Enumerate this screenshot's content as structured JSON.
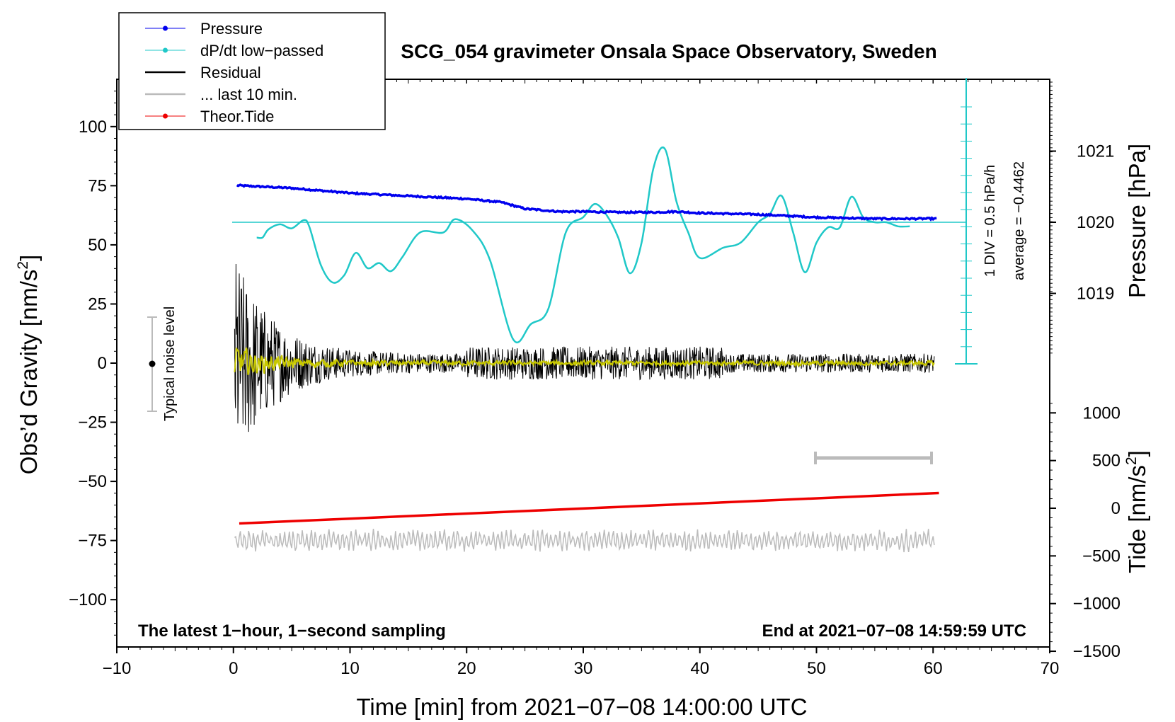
{
  "chart_data": {
    "type": "line",
    "title": "SCG_054 gravimeter Onsala Space Observatory, Sweden",
    "xlabel": "Time [min] from 2021−07−08 14:00:00 UTC",
    "ylabel_left_prefix": "Obs’d Gravity [nm/s",
    "ylabel_left_sup": "2",
    "ylabel_left_suffix": "]",
    "ylabel_right_pressure": "Pressure [hPa]",
    "ylabel_right_tide_prefix": "Tide [nm/s",
    "ylabel_right_tide_sup": "2",
    "ylabel_right_tide_suffix": "]",
    "xlim": [
      -10,
      70
    ],
    "ylim": [
      -120,
      120
    ],
    "x_ticks": [
      "−10",
      "0",
      "10",
      "20",
      "30",
      "40",
      "50",
      "60",
      "70"
    ],
    "x_tick_values": [
      -10,
      0,
      10,
      20,
      30,
      40,
      50,
      60,
      70
    ],
    "y_ticks": [
      "100",
      "75",
      "50",
      "25",
      "0",
      "−25",
      "−50",
      "−75",
      "−100"
    ],
    "y_tick_values": [
      100,
      75,
      50,
      25,
      0,
      -25,
      -50,
      -75,
      -100
    ],
    "pressure_ticks": [
      "1021",
      "1020",
      "1019"
    ],
    "pressure_tick_values": [
      1021,
      1020,
      1019
    ],
    "tide_ticks": [
      "1000",
      "500",
      "0",
      "−500",
      "−1000",
      "−1500"
    ],
    "tide_tick_values": [
      1000,
      500,
      0,
      -500,
      -1000,
      -1500
    ],
    "legend": [
      {
        "label": "Pressure",
        "color": "#0000ee",
        "marker": true
      },
      {
        "label": "dP/dt low−passed",
        "color": "#20c8c8",
        "marker": true
      },
      {
        "label": "Residual",
        "color": "#000000",
        "marker": false
      },
      {
        "label": "... last 10 min.",
        "color": "#bbbbbb",
        "marker": false
      },
      {
        "label": "Theor.Tide",
        "color": "#ee0000",
        "marker": true
      }
    ],
    "colors": {
      "pressure": "#0000ee",
      "dpdt": "#20c8c8",
      "residual": "#000000",
      "residual_smooth": "#c8c800",
      "last10": "#bbbbbb",
      "tide": "#ee0000"
    },
    "series": [
      {
        "name": "Pressure",
        "unit": "hPa",
        "x": [
          0,
          5,
          10,
          15,
          20,
          23,
          25,
          28,
          30,
          33,
          36,
          38,
          40,
          45,
          50,
          55,
          60
        ],
        "values": [
          1020.52,
          1020.48,
          1020.41,
          1020.37,
          1020.33,
          1020.28,
          1020.19,
          1020.15,
          1020.15,
          1020.14,
          1020.14,
          1020.15,
          1020.13,
          1020.11,
          1020.07,
          1020.05,
          1020.05
        ]
      },
      {
        "name": "dP/dt low-passed",
        "unit": "hPa/h",
        "x": [
          2,
          2.5,
          3,
          4,
          5,
          6,
          6.5,
          7.5,
          8.5,
          9.5,
          10.5,
          11.5,
          12.5,
          13.5,
          14.5,
          16,
          18,
          19,
          20.5,
          22,
          24,
          25.5,
          27,
          28.5,
          30,
          31,
          32,
          33,
          34,
          35,
          36,
          37,
          38,
          39,
          40,
          42,
          43.5,
          45,
          46,
          47,
          48,
          49,
          50,
          51,
          52,
          53,
          54,
          55,
          56,
          57,
          58
        ],
        "values": [
          -0.15,
          -0.15,
          -0.07,
          -0.02,
          -0.06,
          0.02,
          -0.04,
          -0.42,
          -0.59,
          -0.52,
          -0.3,
          -0.45,
          -0.4,
          -0.48,
          -0.34,
          -0.1,
          -0.1,
          0.03,
          -0.08,
          -0.37,
          -1.15,
          -1.0,
          -0.85,
          -0.1,
          0.05,
          0.18,
          0.07,
          -0.15,
          -0.5,
          -0.2,
          0.52,
          0.72,
          0.2,
          -0.1,
          -0.35,
          -0.25,
          -0.2,
          0.0,
          0.08,
          0.26,
          -0.1,
          -0.49,
          -0.2,
          -0.05,
          -0.05,
          0.25,
          0.05,
          0.0,
          0.0,
          -0.04,
          -0.04
        ]
      },
      {
        "name": "Theor.Tide",
        "unit": "nm/s2",
        "x": [
          0.5,
          60.5
        ],
        "values": [
          -160,
          160
        ]
      }
    ],
    "average_label": "average = −0.4462",
    "div_label": "1 DIV = 0.5 hPa/h",
    "noise_label": "Typical noise level",
    "bottom_left_note": "The latest 1−hour, 1−second sampling",
    "bottom_right_note": "End at 2021−07−08 14:59:59 UTC"
  }
}
